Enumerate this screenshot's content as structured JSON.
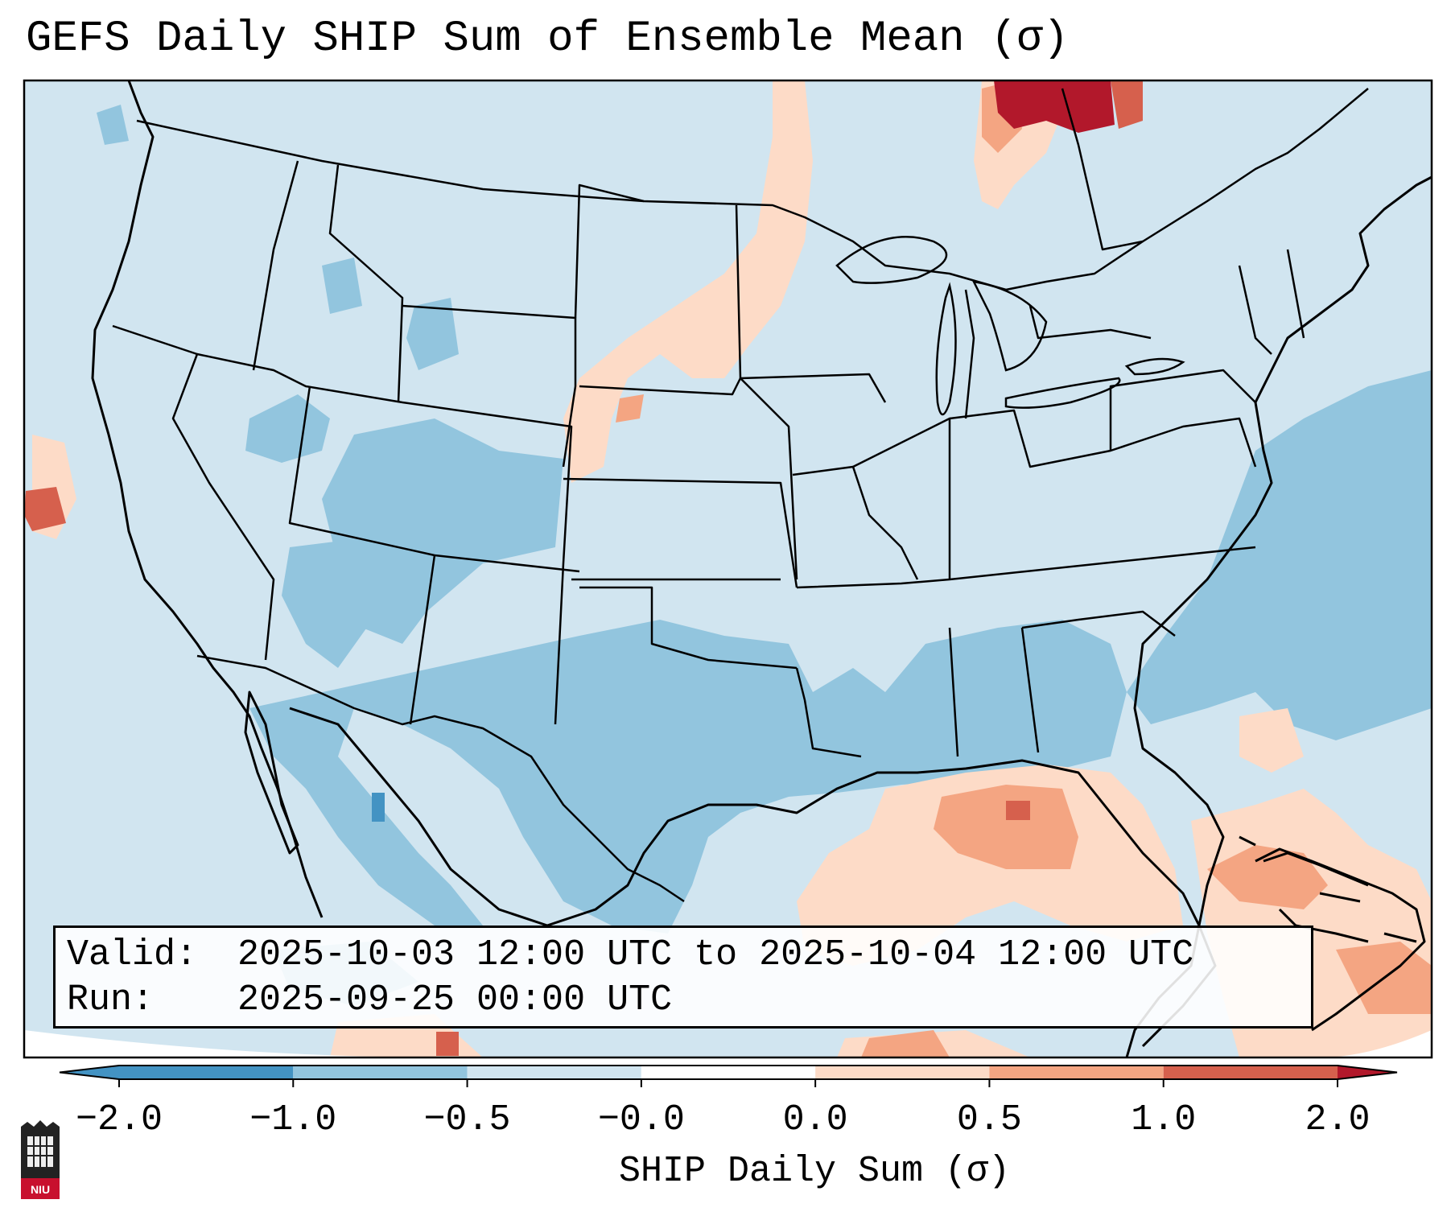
{
  "title": "GEFS Daily SHIP Sum of Ensemble Mean (σ)",
  "valid_box": {
    "valid_label": "Valid:",
    "valid_value": "2025-10-03 12:00 UTC to 2025-10-04 12:00 UTC",
    "run_label": "Run:",
    "run_value": "2025-09-25 00:00 UTC"
  },
  "colorbar": {
    "label": "SHIP Daily Sum (σ)",
    "ticks": [
      "−2.0",
      "−1.0",
      "−0.5",
      "−0.0",
      "0.0",
      "0.5",
      "1.0",
      "2.0"
    ],
    "colors": [
      "#4393c3",
      "#92c5de",
      "#d1e5f0",
      "#ffffff",
      "#fddbc7",
      "#f4a582",
      "#d6604d",
      "#b2182b"
    ]
  },
  "logo": {
    "text": "NIU",
    "icon": "niu-logo-icon"
  },
  "map": {
    "region": "Contiguous United States, northern Mexico, Gulf of Mexico and Caribbean",
    "background_class": "-0.5 to -0.0",
    "notable_features": [
      {
        "name": "strong-positive-anomaly-ontario",
        "class": "1.0 to 2.0"
      },
      {
        "name": "positive-anomaly-gulf-of-mexico",
        "class": "0.5 to 1.0"
      },
      {
        "name": "negative-anomaly-texas-southwest",
        "class": "-1.0 to -0.5"
      },
      {
        "name": "negative-anomaly-atlantic",
        "class": "-1.0 to -0.5"
      }
    ]
  }
}
